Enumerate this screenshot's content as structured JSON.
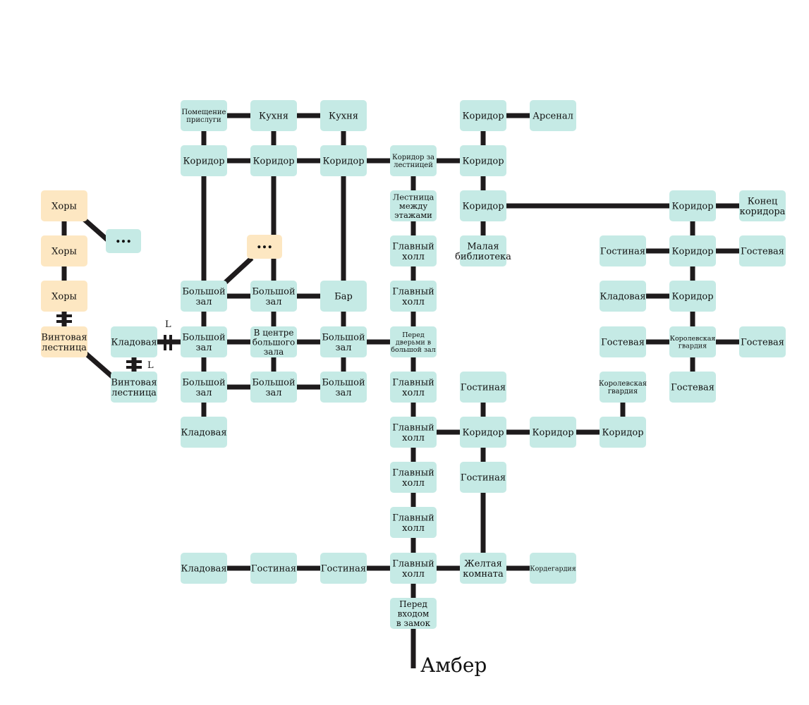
{
  "colors": {
    "room": "#c5eae5",
    "special": "#fde7c2",
    "line": "#1e1b1c"
  },
  "exit_label": "Амбер",
  "marker_label": "L",
  "rooms": {
    "servants": "Помещение\nприслуги",
    "kitchen1": "Кухня",
    "kitchen2": "Кухня",
    "corr_a": "Коридор",
    "corr_b": "Коридор",
    "corr_c": "Коридор",
    "corr_stairs": "Коридор за\nлестницей",
    "stairs_between": "Лестница\nмежду\nэтажами",
    "corr_top": "Коридор",
    "arsenal": "Арсенал",
    "corr_mid": "Коридор",
    "corr_east": "Коридор",
    "small_library": "Малая\nбиблиотека",
    "choir1": "Хоры",
    "choir2": "Хоры",
    "choir3": "Хоры",
    "ellipsis1": "...",
    "spiral1": "Винтовая\nлестница",
    "spiral2": "Винтовая\nлестница",
    "storage_w": "Кладовая",
    "ellipsis2": "...",
    "bighall_a": "Большой\nзал",
    "bighall_b": "Большой\nзал",
    "bar": "Бар",
    "bighall_c": "Большой\nзал",
    "hall_center": "В центре\nбольшого\nзала",
    "bighall_d": "Большой\nзал",
    "bighall_e": "Большой\nзал",
    "bighall_f": "Большой\nзал",
    "bighall_g": "Большой\nзал",
    "storage_sw": "Кладовая",
    "mainhall1": "Главный\nхолл",
    "mainhall2": "Главный\nхолл",
    "before_doors": "Перед\nдверьми в\nбольшой зал",
    "mainhall3": "Главный\nхолл",
    "mainhall4": "Главный\nхолл",
    "mainhall5": "Главный\nхолл",
    "mainhall6": "Главный\nхолл",
    "mainhall7": "Главный\nхолл",
    "before_entrance": "Перед\nвходом\nв замок",
    "living1": "Гостиная",
    "corr_s1": "Коридор",
    "corr_s2": "Коридор",
    "corr_s3": "Коридор",
    "living2": "Гостиная",
    "yellow_room": "Желтая\nкомната",
    "guardhouse": "Кордегардия",
    "royal_guard_s": "Королевская\nгвардия",
    "storage_bottom": "Кладовая",
    "living3": "Гостиная",
    "living4": "Гостиная",
    "corr_end": "Конец\nкоридора",
    "living_e": "Гостиная",
    "corr_e2": "Коридор",
    "guest1": "Гостевая",
    "storage_e": "Кладовая",
    "corr_e3": "Коридор",
    "guest2": "Гостевая",
    "royal_guard_e": "Королевская\nгвардия",
    "guest3": "Гостевая",
    "guest4": "Гостевая"
  }
}
